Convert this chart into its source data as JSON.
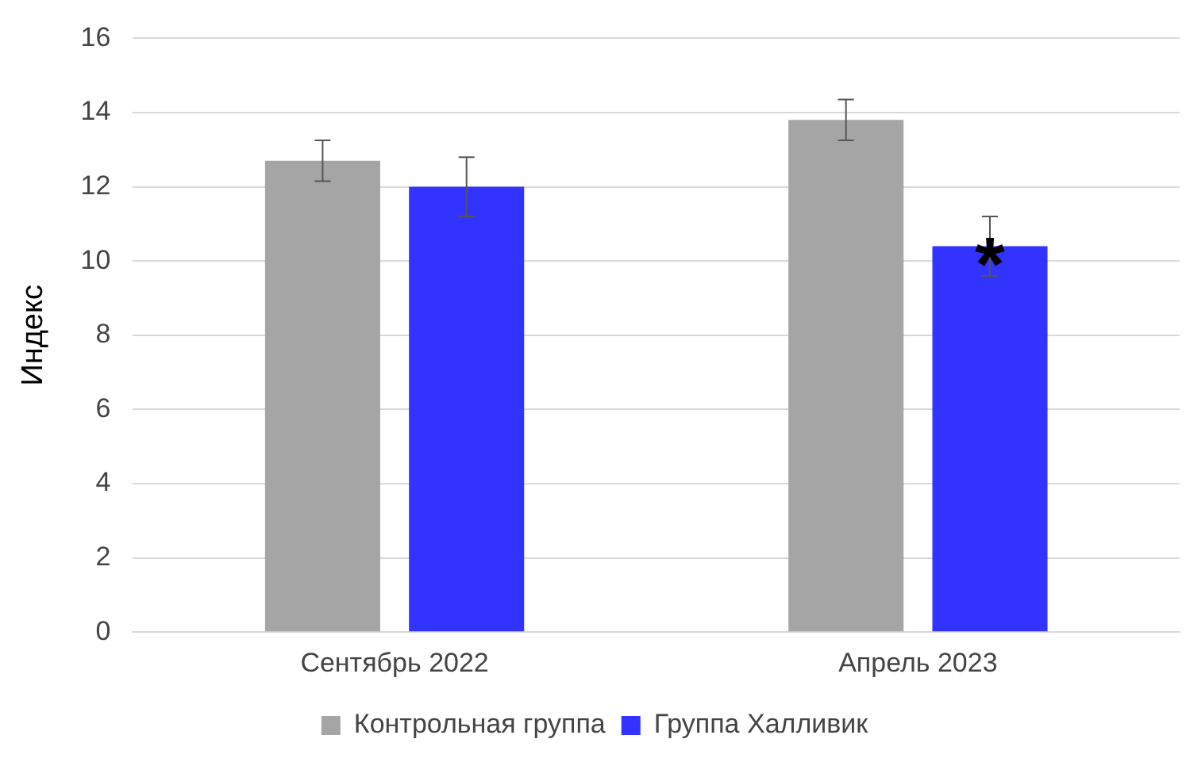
{
  "chart_data": {
    "type": "bar",
    "ylabel": "Индекс",
    "categories": [
      "Сентябрь 2022",
      "Апрель 2023"
    ],
    "series": [
      {
        "name": "Контрольная группа",
        "color": "#a5a5a5",
        "values": [
          12.7,
          13.8
        ],
        "errors": [
          0.55,
          0.55
        ]
      },
      {
        "name": "Группа Халливик",
        "color": "#3333ff",
        "values": [
          12.0,
          10.4
        ],
        "errors": [
          0.8,
          0.8
        ]
      }
    ],
    "ylim": [
      0,
      16
    ],
    "yticks": [
      0,
      2,
      4,
      6,
      8,
      10,
      12,
      14,
      16
    ],
    "grid": "y",
    "legend": "bottom",
    "annotations": [
      "*"
    ]
  }
}
